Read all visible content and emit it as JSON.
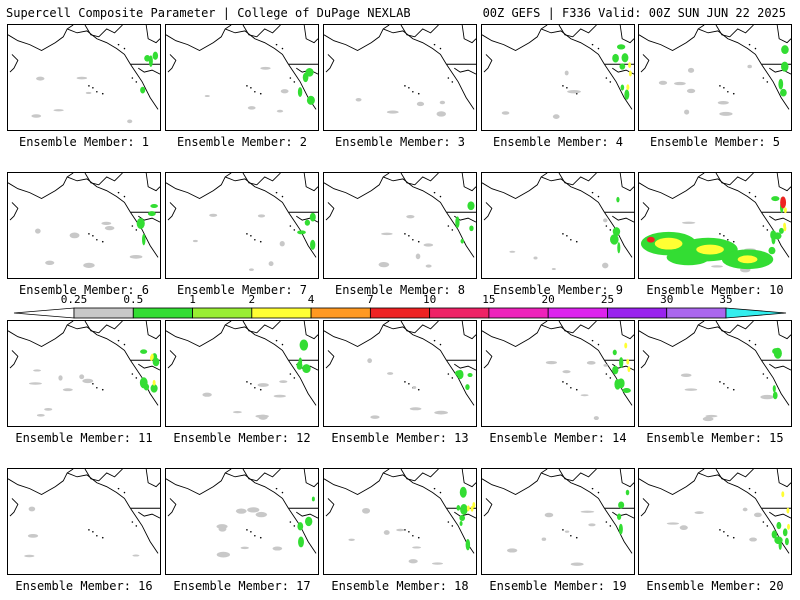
{
  "header": {
    "left": "Supercell Composite Parameter | College of DuPage NEXLAB",
    "right": "00Z GEFS | F336 Valid: 00Z SUN JUN 22 2025"
  },
  "panels": [
    {
      "label": "Ensemble Member: 1",
      "intensity": 1
    },
    {
      "label": "Ensemble Member: 2",
      "intensity": 1
    },
    {
      "label": "Ensemble Member: 3",
      "intensity": 0
    },
    {
      "label": "Ensemble Member: 4",
      "intensity": 2
    },
    {
      "label": "Ensemble Member: 5",
      "intensity": 1
    },
    {
      "label": "Ensemble Member: 6",
      "intensity": 1
    },
    {
      "label": "Ensemble Member: 7",
      "intensity": 1
    },
    {
      "label": "Ensemble Member: 8",
      "intensity": 1
    },
    {
      "label": "Ensemble Member: 9",
      "intensity": 1
    },
    {
      "label": "Ensemble Member: 10",
      "intensity": 3
    },
    {
      "label": "Ensemble Member: 11",
      "intensity": 2
    },
    {
      "label": "Ensemble Member: 12",
      "intensity": 1
    },
    {
      "label": "Ensemble Member: 13",
      "intensity": 1
    },
    {
      "label": "Ensemble Member: 14",
      "intensity": 2
    },
    {
      "label": "Ensemble Member: 15",
      "intensity": 1
    },
    {
      "label": "Ensemble Member: 16",
      "intensity": 0
    },
    {
      "label": "Ensemble Member: 17",
      "intensity": 1
    },
    {
      "label": "Ensemble Member: 18",
      "intensity": 2
    },
    {
      "label": "Ensemble Member: 19",
      "intensity": 1
    },
    {
      "label": "Ensemble Member: 20",
      "intensity": 2
    }
  ],
  "colorbar": {
    "ticks": [
      "0.25",
      "0.5",
      "1",
      "2",
      "4",
      "7",
      "10",
      "15",
      "20",
      "25",
      "30",
      "35"
    ],
    "colors": [
      "#c8c8c8",
      "#33dd33",
      "#99ee33",
      "#ffff33",
      "#ff9922",
      "#ee2222",
      "#ee2266",
      "#ee22bb",
      "#dd22ee",
      "#9922ee",
      "#aa66ee",
      "#33eeee"
    ]
  }
}
